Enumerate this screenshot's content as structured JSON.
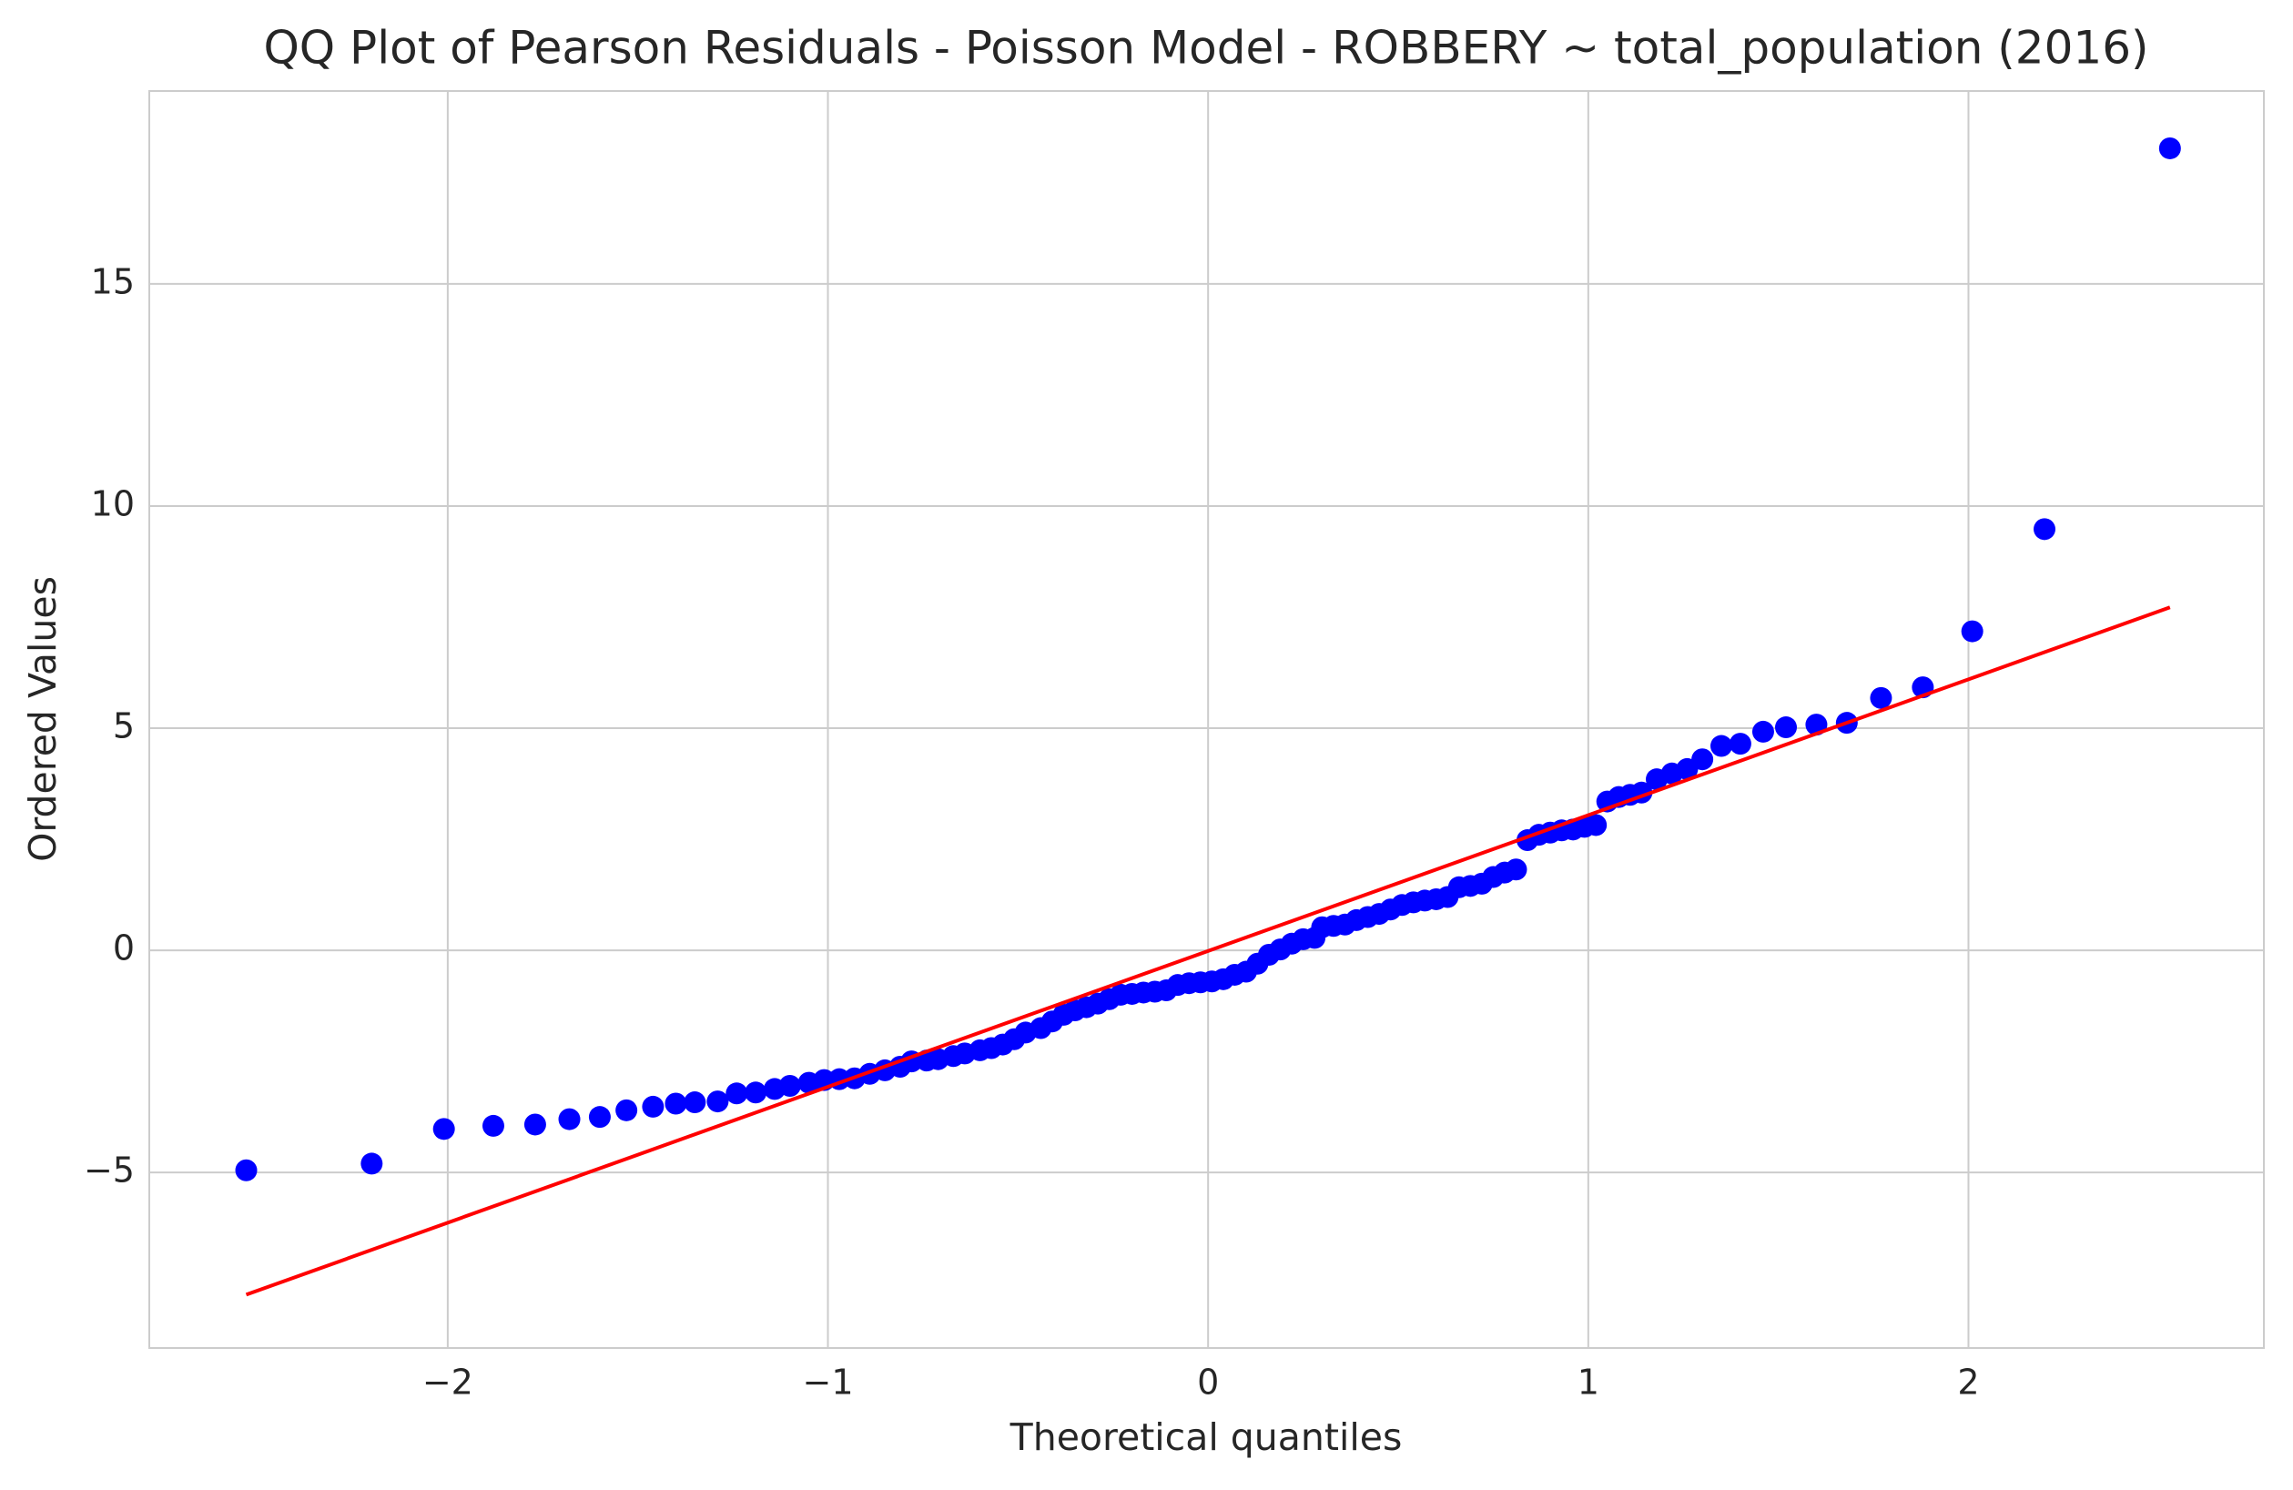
{
  "chart_data": {
    "type": "scatter",
    "title": "QQ Plot of Pearson Residuals - Poisson Model - ROBBERY ~ total_population (2016)",
    "x_label": "Theoretical quantiles",
    "y_label": "Ordered Values",
    "xlim": [
      -2.785,
      2.777
    ],
    "ylim": [
      -8.95,
      19.34
    ],
    "xticks": [
      {
        "value": -2,
        "label": "−2"
      },
      {
        "value": -1,
        "label": "−1"
      },
      0,
      1,
      2
    ],
    "yticks": [
      {
        "value": -5,
        "label": "−5"
      },
      0,
      5,
      10,
      15
    ],
    "grid": true,
    "points": {
      "color": "#0000ff",
      "x": [
        -2.53,
        -2.2,
        -2.01,
        -1.88,
        -1.77,
        -1.68,
        -1.6,
        -1.53,
        -1.46,
        -1.4,
        -1.35,
        -1.29,
        -1.24,
        -1.19,
        -1.14,
        -1.1,
        -1.05,
        -1.01,
        -0.97,
        -0.93,
        -0.89,
        -0.85,
        -0.81,
        -0.78,
        -0.74,
        -0.71,
        -0.67,
        -0.64,
        -0.6,
        -0.57,
        -0.54,
        -0.51,
        -0.48,
        -0.44,
        -0.41,
        -0.38,
        -0.35,
        -0.32,
        -0.29,
        -0.26,
        -0.23,
        -0.2,
        -0.17,
        -0.14,
        -0.11,
        -0.08,
        -0.05,
        -0.02,
        0.01,
        0.04,
        0.07,
        0.1,
        0.13,
        0.16,
        0.19,
        0.22,
        0.25,
        0.28,
        0.3,
        0.33,
        0.36,
        0.39,
        0.42,
        0.45,
        0.48,
        0.51,
        0.54,
        0.57,
        0.6,
        0.63,
        0.66,
        0.69,
        0.72,
        0.75,
        0.78,
        0.81,
        0.84,
        0.87,
        0.9,
        0.93,
        0.96,
        0.99,
        1.02,
        1.05,
        1.08,
        1.11,
        1.14,
        1.18,
        1.22,
        1.26,
        1.3,
        1.35,
        1.4,
        1.46,
        1.52,
        1.6,
        1.68,
        1.77,
        1.88,
        2.01,
        2.2,
        2.53
      ],
      "y": [
        -4.95,
        -4.8,
        -4.02,
        -3.95,
        -3.92,
        -3.8,
        -3.75,
        -3.6,
        -3.52,
        -3.45,
        -3.42,
        -3.4,
        -3.22,
        -3.2,
        -3.12,
        -3.05,
        -2.98,
        -2.92,
        -2.9,
        -2.88,
        -2.78,
        -2.7,
        -2.62,
        -2.5,
        -2.48,
        -2.45,
        -2.38,
        -2.32,
        -2.25,
        -2.2,
        -2.12,
        -2.0,
        -1.85,
        -1.75,
        -1.6,
        -1.45,
        -1.35,
        -1.28,
        -1.2,
        -1.1,
        -1.0,
        -0.98,
        -0.95,
        -0.93,
        -0.9,
        -0.78,
        -0.74,
        -0.72,
        -0.7,
        -0.65,
        -0.55,
        -0.48,
        -0.3,
        -0.1,
        0.02,
        0.15,
        0.25,
        0.28,
        0.52,
        0.55,
        0.58,
        0.68,
        0.75,
        0.82,
        0.92,
        1.02,
        1.08,
        1.12,
        1.15,
        1.2,
        1.42,
        1.45,
        1.5,
        1.65,
        1.75,
        1.82,
        2.48,
        2.6,
        2.65,
        2.7,
        2.72,
        2.78,
        2.82,
        3.35,
        3.45,
        3.5,
        3.55,
        3.85,
        3.98,
        4.08,
        4.3,
        4.6,
        4.65,
        4.92,
        5.02,
        5.08,
        5.12,
        5.68,
        5.92,
        7.18,
        9.48,
        18.05
      ]
    },
    "fit_line": {
      "color": "#ff0000",
      "x": [
        -2.53,
        2.53
      ],
      "y": [
        -7.75,
        7.72
      ]
    }
  }
}
